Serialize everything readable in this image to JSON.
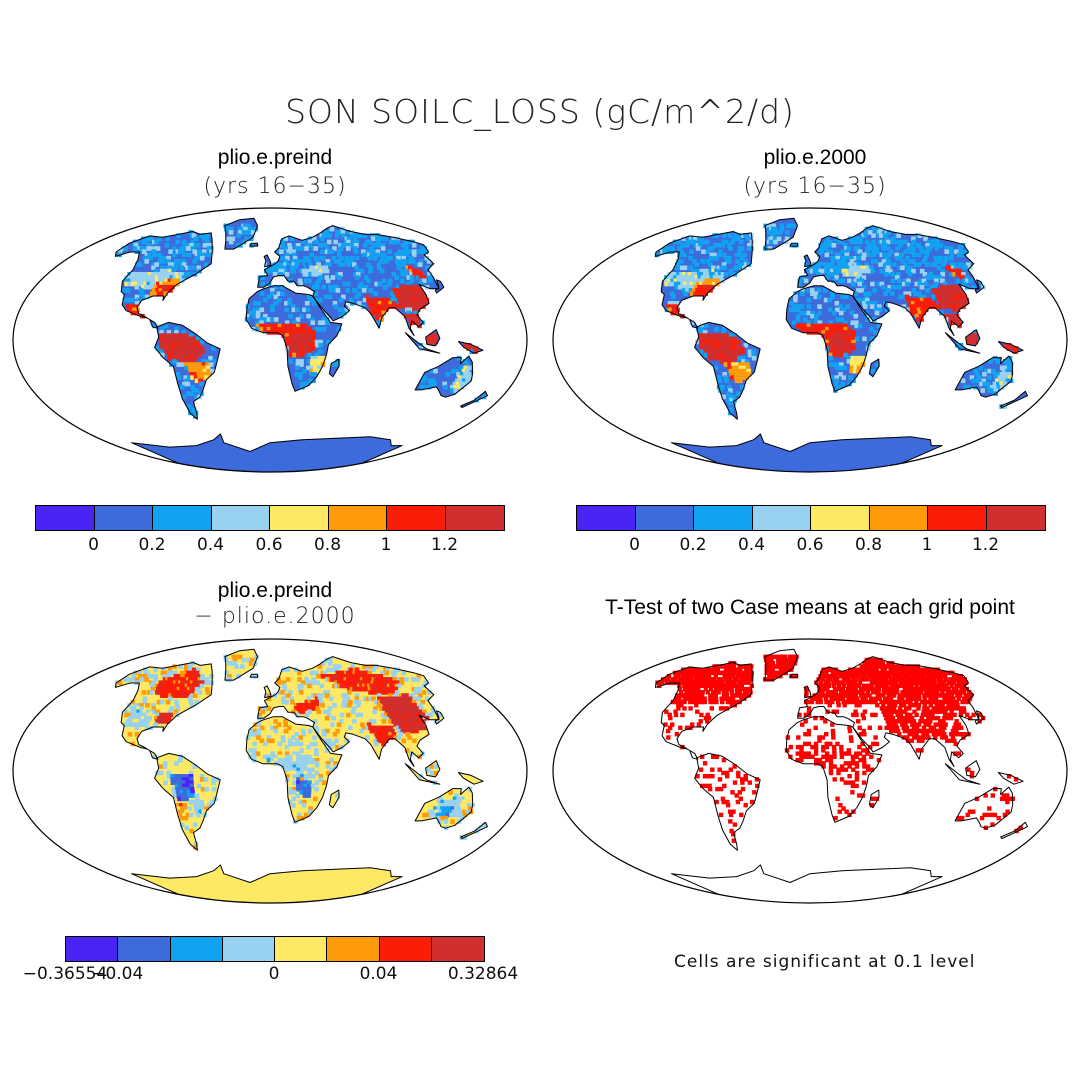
{
  "figure": {
    "title": "SON SOILC_LOSS (gC/m^2/d)"
  },
  "panels": [
    {
      "id": "preind",
      "title": "plio.e.preind",
      "subtitle": "(yrs 16−35)",
      "scheme": "abs"
    },
    {
      "id": "p2000",
      "title": "plio.e.2000",
      "subtitle": "(yrs 16−35)",
      "scheme": "abs"
    },
    {
      "id": "diff",
      "title": "plio.e.preind",
      "subtitle": "− plio.e.2000",
      "scheme": "diff"
    },
    {
      "id": "ttest",
      "title": "T-Test of two Case means at each grid point",
      "subtitle": "",
      "scheme": "sig"
    }
  ],
  "colorbars": {
    "abs": {
      "colors": [
        "#4a24f5",
        "#3d6bdc",
        "#12a2f2",
        "#98d2f0",
        "#fde964",
        "#fd9b0a",
        "#fa1d08",
        "#d12f2f"
      ],
      "labels": [
        "0",
        "0.2",
        "0.4",
        "0.6",
        "0.8",
        "1",
        "1.2"
      ]
    },
    "diff": {
      "colors": [
        "#4a24f5",
        "#3d6bdc",
        "#12a2f2",
        "#98d2f0",
        "#fde964",
        "#fd9b0a",
        "#fa1d08",
        "#d12f2f"
      ],
      "labels": [
        "−0.36554",
        "−0.04",
        "0",
        "0.04",
        "0.32864"
      ]
    }
  },
  "significance_note": "Cells are significant at 0.1 level",
  "colors": {
    "significance": "#ff0000",
    "coastline": "#000000"
  }
}
